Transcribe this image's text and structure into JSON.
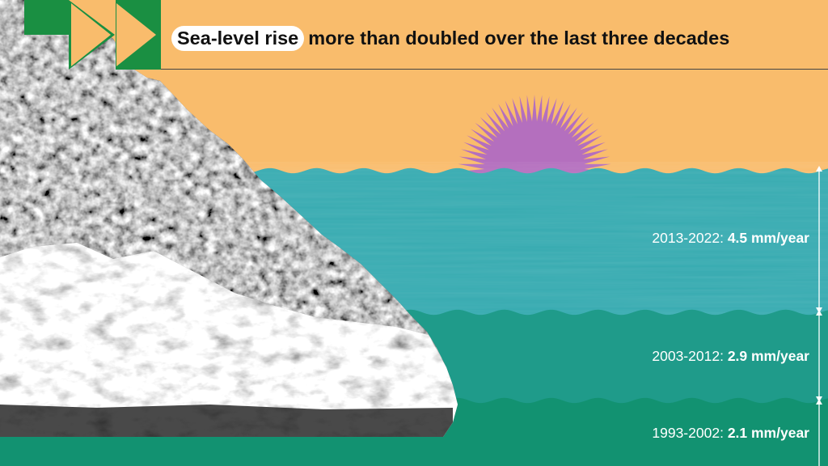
{
  "title": {
    "highlight": "Sea-level rise",
    "rest": "more than doubled over the last three decades"
  },
  "periods": [
    {
      "range": "2013-2022:",
      "rate": "4.5 mm/year"
    },
    {
      "range": "2003-2012:",
      "rate": "2.9 mm/year"
    },
    {
      "range": "1993-2002:",
      "rate": "2.1 mm/year"
    }
  ],
  "chart_data": {
    "type": "bar",
    "categories": [
      "1993-2002",
      "2003-2012",
      "2013-2022"
    ],
    "values": [
      2.1,
      2.9,
      4.5
    ],
    "title": "Sea-level rise more than doubled over the last three decades",
    "xlabel": "",
    "ylabel": "mm/year"
  },
  "colors": {
    "sky": "#f9bc6c",
    "sun": "#b46fbe",
    "water_top": "#35aab0",
    "water_mid": "#1f9b8a",
    "water_bottom": "#129271",
    "chevron_bg": "#1a8f42",
    "chevron": "#f9bc6c"
  },
  "icons": [
    "chevron-right-icon",
    "sun-icon",
    "double-arrow-icon"
  ]
}
